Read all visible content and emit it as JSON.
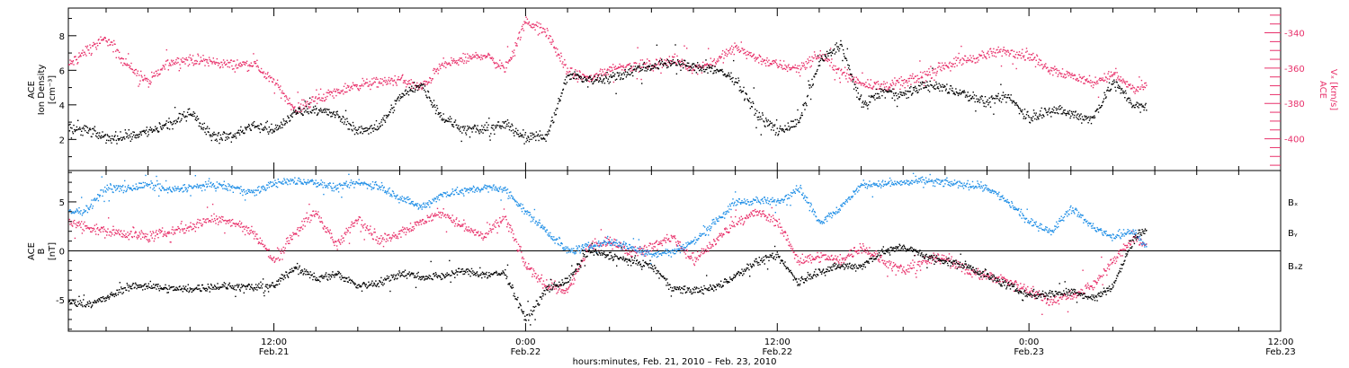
{
  "colors": {
    "axis": "#000000",
    "density": "#000000",
    "speed": "#e8306a",
    "bx": "#000000",
    "by": "#1e8ee6",
    "bz": "#e8306a"
  },
  "xaxis": {
    "title": "hours:minutes, Feb. 21, 2010 – Feb. 23, 2010",
    "range_hours": [
      2.2,
      60.0
    ],
    "ticks": [
      {
        "hour": 12,
        "time": "12:00",
        "date": "Feb.21"
      },
      {
        "hour": 24,
        "time": "0:00",
        "date": "Feb.22"
      },
      {
        "hour": 36,
        "time": "12:00",
        "date": "Feb.22"
      },
      {
        "hour": 48,
        "time": "0:00",
        "date": "Feb.23"
      },
      {
        "hour": 60,
        "time": "12:00",
        "date": "Feb.23"
      }
    ],
    "minor_step_hours": 2
  },
  "chart_data": [
    {
      "type": "scatter",
      "panel": "top",
      "ylabel_left": [
        "ACE",
        "Ion Density",
        "[cm⁻³]"
      ],
      "ylabel_right": [
        "ACE",
        "Vₓ [km/s]"
      ],
      "ylim": [
        0.2,
        9.6
      ],
      "yticks": [
        2,
        4,
        6,
        8
      ],
      "ylim_right": [
        -418,
        -326
      ],
      "yticks_right": [
        -340,
        -360,
        -380,
        -400
      ],
      "series": [
        {
          "key": "density",
          "axis": "left",
          "x": [
            2.2,
            3.0,
            4.0,
            5.0,
            6.0,
            7.0,
            8.0,
            9.0,
            10.0,
            11.0,
            12.0,
            13.0,
            14.0,
            15.0,
            16.0,
            17.0,
            18.0,
            19.0,
            20.0,
            21.0,
            22.0,
            23.0,
            24.0,
            25.0,
            26.0,
            27.0,
            28.0,
            29.0,
            30.0,
            31.0,
            32.0,
            33.0,
            34.0,
            35.0,
            36.0,
            37.0,
            38.0,
            39.0,
            40.0,
            41.0,
            42.0,
            43.0,
            44.0,
            45.0,
            46.0,
            47.0,
            48.0,
            49.0,
            50.0,
            51.0,
            52.0,
            53.0,
            53.6
          ],
          "y": [
            2.6,
            2.6,
            2.1,
            2.2,
            2.5,
            2.9,
            3.6,
            2.3,
            2.2,
            2.9,
            2.5,
            3.6,
            3.8,
            3.4,
            2.5,
            2.8,
            4.5,
            5.2,
            3.3,
            2.6,
            2.6,
            2.9,
            2.2,
            2.2,
            5.8,
            5.5,
            5.6,
            6.0,
            6.3,
            6.5,
            6.2,
            6.1,
            5.5,
            3.5,
            2.5,
            3.0,
            6.5,
            7.5,
            4.0,
            4.8,
            4.6,
            5.2,
            5.0,
            4.6,
            4.2,
            4.5,
            3.2,
            3.8,
            3.5,
            3.2,
            5.4,
            4.0,
            3.8
          ]
        },
        {
          "key": "speed",
          "axis": "right",
          "x": [
            2.2,
            3.0,
            4.0,
            5.0,
            6.0,
            7.0,
            8.0,
            9.0,
            10.0,
            11.0,
            12.0,
            13.0,
            14.0,
            15.0,
            16.0,
            17.0,
            18.0,
            19.0,
            20.0,
            21.0,
            22.0,
            23.0,
            24.0,
            25.0,
            26.0,
            27.0,
            28.0,
            29.0,
            30.0,
            31.0,
            32.0,
            33.0,
            34.0,
            35.0,
            36.0,
            37.0,
            38.0,
            39.0,
            40.0,
            41.0,
            42.0,
            43.0,
            44.0,
            45.0,
            46.0,
            47.0,
            48.0,
            49.0,
            50.0,
            51.0,
            52.0,
            53.0,
            53.6
          ],
          "y": [
            -358,
            -350,
            -343,
            -358,
            -368,
            -356,
            -355,
            -356,
            -358,
            -357,
            -368,
            -383,
            -377,
            -373,
            -369,
            -368,
            -366,
            -371,
            -358,
            -355,
            -352,
            -360,
            -333,
            -340,
            -362,
            -366,
            -360,
            -358,
            -358,
            -355,
            -360,
            -356,
            -348,
            -354,
            -358,
            -360,
            -352,
            -362,
            -368,
            -370,
            -368,
            -364,
            -358,
            -355,
            -352,
            -350,
            -353,
            -360,
            -364,
            -368,
            -363,
            -372,
            -370
          ]
        }
      ]
    },
    {
      "type": "scatter",
      "panel": "bottom",
      "ylabel_left": [
        "ACE",
        "B",
        "[nT]"
      ],
      "ylim": [
        -8.2,
        8.2
      ],
      "yticks": [
        -5,
        0,
        5
      ],
      "legend": [
        "Bₓ",
        "Bᵧ",
        "Bₓz"
      ],
      "legend_placement": "right",
      "series": [
        {
          "key": "bx",
          "name": "Bx",
          "x": [
            2.2,
            3.0,
            4.0,
            5.0,
            6.0,
            7.0,
            8.0,
            9.0,
            10.0,
            11.0,
            12.0,
            13.0,
            14.0,
            15.0,
            16.0,
            17.0,
            18.0,
            19.0,
            20.0,
            21.0,
            22.0,
            23.0,
            24.0,
            25.0,
            26.0,
            27.0,
            28.0,
            29.0,
            30.0,
            31.0,
            32.0,
            33.0,
            34.0,
            35.0,
            36.0,
            37.0,
            38.0,
            39.0,
            40.0,
            41.0,
            42.0,
            43.0,
            44.0,
            45.0,
            46.0,
            47.0,
            48.0,
            49.0,
            50.0,
            51.0,
            52.0,
            53.0,
            53.6
          ],
          "y": [
            -5.2,
            -5.4,
            -4.8,
            -3.6,
            -3.5,
            -3.8,
            -3.9,
            -3.6,
            -3.6,
            -3.7,
            -3.5,
            -1.5,
            -2.8,
            -2.3,
            -3.5,
            -3.2,
            -2.2,
            -2.6,
            -2.5,
            -2.0,
            -2.4,
            -2.2,
            -7.0,
            -3.8,
            -3.0,
            0.0,
            -0.5,
            -1.0,
            -1.5,
            -3.8,
            -4.0,
            -3.7,
            -2.5,
            -1.0,
            -0.5,
            -3.2,
            -2.0,
            -1.5,
            -1.5,
            0.0,
            0.5,
            -0.5,
            -1.0,
            -1.5,
            -2.5,
            -3.5,
            -4.5,
            -4.3,
            -4.0,
            -4.8,
            -3.5,
            1.5,
            2.2
          ]
        },
        {
          "key": "by",
          "name": "By",
          "x": [
            2.2,
            3.0,
            4.0,
            5.0,
            6.0,
            7.0,
            8.0,
            9.0,
            10.0,
            11.0,
            12.0,
            13.0,
            14.0,
            15.0,
            16.0,
            17.0,
            18.0,
            19.0,
            20.0,
            21.0,
            22.0,
            23.0,
            24.0,
            25.0,
            26.0,
            27.0,
            28.0,
            29.0,
            30.0,
            31.0,
            32.0,
            33.0,
            34.0,
            35.0,
            36.0,
            37.0,
            38.0,
            39.0,
            40.0,
            41.0,
            42.0,
            43.0,
            44.0,
            45.0,
            46.0,
            47.0,
            48.0,
            49.0,
            50.0,
            51.0,
            52.0,
            53.0,
            53.6
          ],
          "y": [
            4.0,
            4.2,
            6.5,
            6.4,
            6.8,
            6.2,
            6.5,
            6.8,
            6.5,
            6.0,
            7.0,
            7.2,
            7.0,
            6.5,
            7.0,
            6.6,
            5.5,
            4.5,
            5.8,
            6.2,
            6.5,
            6.3,
            4.0,
            2.0,
            0.0,
            0.5,
            1.0,
            0.5,
            -0.3,
            0.0,
            1.0,
            3.0,
            5.0,
            5.2,
            5.0,
            6.5,
            3.0,
            4.5,
            6.8,
            6.9,
            7.0,
            7.2,
            7.0,
            6.8,
            6.5,
            5.0,
            3.0,
            2.0,
            4.5,
            2.5,
            1.5,
            2.0,
            0.3
          ]
        },
        {
          "key": "bz",
          "name": "Bz",
          "x": [
            2.2,
            3.0,
            4.0,
            5.0,
            6.0,
            7.0,
            8.0,
            9.0,
            10.0,
            11.0,
            12.0,
            13.0,
            14.0,
            15.0,
            16.0,
            17.0,
            18.0,
            19.0,
            20.0,
            21.0,
            22.0,
            23.0,
            24.0,
            25.0,
            26.0,
            27.0,
            28.0,
            29.0,
            30.0,
            31.0,
            32.0,
            33.0,
            34.0,
            35.0,
            36.0,
            37.0,
            38.0,
            39.0,
            40.0,
            41.0,
            42.0,
            43.0,
            44.0,
            45.0,
            46.0,
            47.0,
            48.0,
            49.0,
            50.0,
            51.0,
            52.0,
            53.0,
            53.6
          ],
          "y": [
            3.0,
            2.5,
            2.0,
            1.8,
            1.5,
            2.0,
            2.5,
            3.5,
            3.0,
            2.0,
            -1.0,
            2.0,
            4.0,
            0.5,
            3.5,
            1.0,
            2.0,
            3.0,
            4.0,
            2.5,
            1.5,
            3.5,
            -1.5,
            -3.5,
            -4.0,
            0.5,
            1.0,
            0.0,
            0.5,
            1.5,
            -1.0,
            1.0,
            3.0,
            4.0,
            3.0,
            -1.0,
            -0.5,
            -1.0,
            0.5,
            -1.0,
            -2.0,
            -1.0,
            -0.5,
            -2.0,
            -2.5,
            -3.0,
            -4.0,
            -5.0,
            -4.5,
            -3.5,
            -1.0,
            1.5,
            0.5
          ]
        }
      ]
    }
  ]
}
